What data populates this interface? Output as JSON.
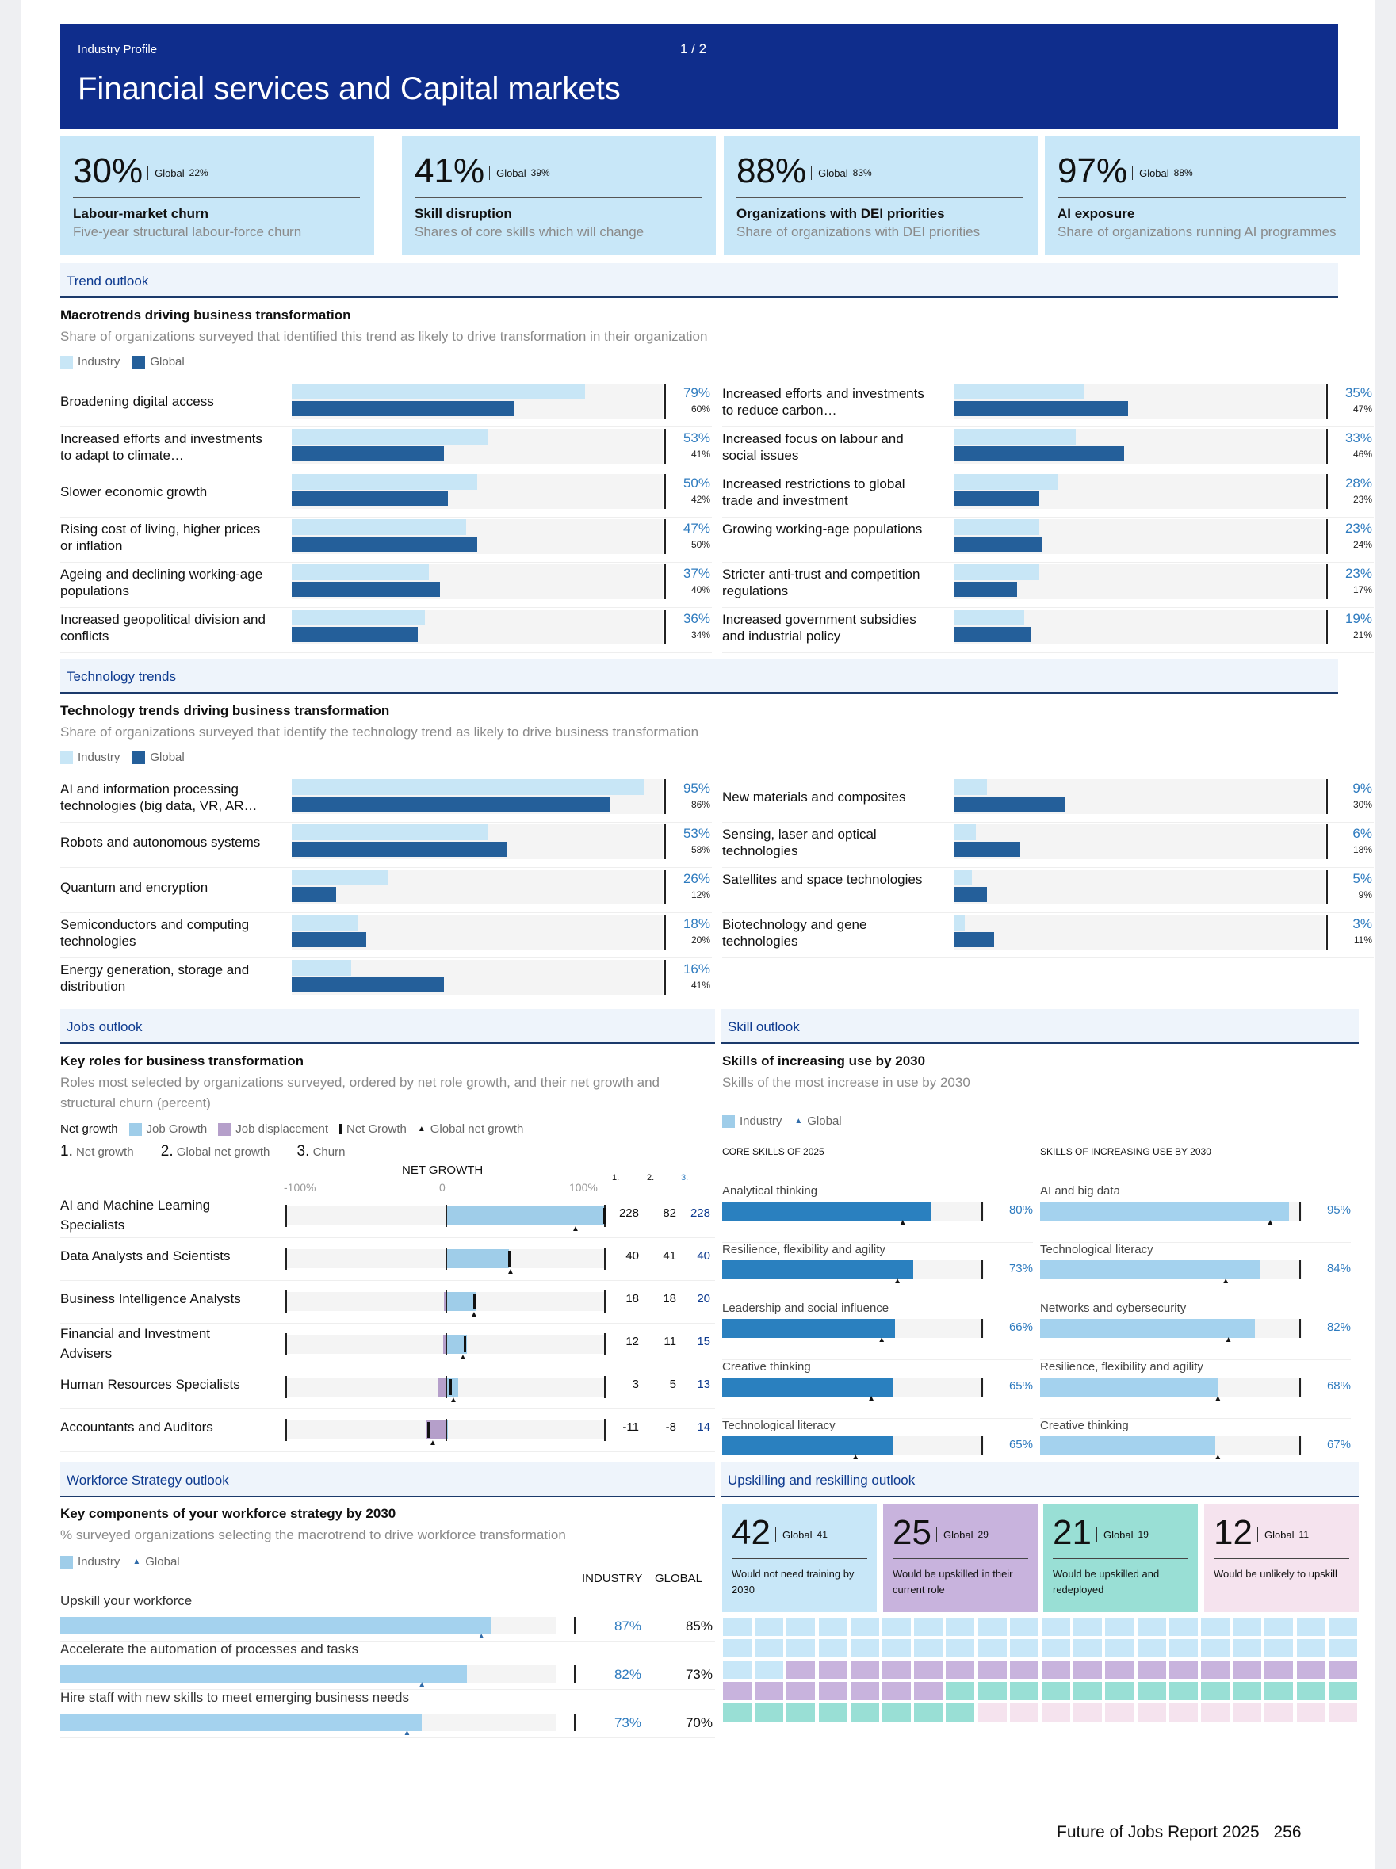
{
  "header": {
    "category": "Industry Profile",
    "page": "1  /  2",
    "title": "Financial services and Capital markets"
  },
  "kpis": [
    {
      "value": "30%",
      "global_label": "Global",
      "global": "22%",
      "title": "Labour-market churn",
      "sub": "Five-year structural labour-force churn"
    },
    {
      "value": "41%",
      "global_label": "Global",
      "global": "39%",
      "title": "Skill disruption",
      "sub": "Shares of core skills which will change"
    },
    {
      "value": "88%",
      "global_label": "Global",
      "global": "83%",
      "title": "Organizations with DEI priorities",
      "sub": "Share of organizations with DEI priorities"
    },
    {
      "value": "97%",
      "global_label": "Global",
      "global": "88%",
      "title": "AI exposure",
      "sub": "Share of organizations running AI programmes"
    }
  ],
  "legend": {
    "industry": "Industry",
    "global": "Global"
  },
  "trend": {
    "section": "Trend outlook",
    "title": "Macrotrends driving business transformation",
    "sub": "Share of organizations surveyed that identified this trend as likely to drive transformation in their organization",
    "left": [
      {
        "label": "Broadening digital access",
        "ind": "79%",
        "glob": "60%",
        "i": 79,
        "g": 60
      },
      {
        "label": "Increased efforts and investments to adapt to climate…",
        "ind": "53%",
        "glob": "41%",
        "i": 53,
        "g": 41
      },
      {
        "label": "Slower economic growth",
        "ind": "50%",
        "glob": "42%",
        "i": 50,
        "g": 42
      },
      {
        "label": "Rising cost of living, higher prices or inflation",
        "ind": "47%",
        "glob": "50%",
        "i": 47,
        "g": 50
      },
      {
        "label": "Ageing and declining working-age populations",
        "ind": "37%",
        "glob": "40%",
        "i": 37,
        "g": 40
      },
      {
        "label": "Increased geopolitical division and conflicts",
        "ind": "36%",
        "glob": "34%",
        "i": 36,
        "g": 34
      }
    ],
    "right": [
      {
        "label": "Increased efforts and investments to reduce carbon…",
        "ind": "35%",
        "glob": "47%",
        "i": 35,
        "g": 47
      },
      {
        "label": "Increased focus on labour and social issues",
        "ind": "33%",
        "glob": "46%",
        "i": 33,
        "g": 46
      },
      {
        "label": "Increased restrictions to global trade and investment",
        "ind": "28%",
        "glob": "23%",
        "i": 28,
        "g": 23
      },
      {
        "label": "Growing working-age populations",
        "ind": "23%",
        "glob": "24%",
        "i": 23,
        "g": 24
      },
      {
        "label": "Stricter anti-trust and competition regulations",
        "ind": "23%",
        "glob": "17%",
        "i": 23,
        "g": 17
      },
      {
        "label": "Increased government subsidies and industrial policy",
        "ind": "19%",
        "glob": "21%",
        "i": 19,
        "g": 21
      }
    ]
  },
  "tech": {
    "section": "Technology trends",
    "title": "Technology trends driving business transformation",
    "sub": "Share of organizations surveyed that identify the technology trend as likely to drive business transformation",
    "left": [
      {
        "label": "AI and information processing technologies (big data, VR, AR…",
        "ind": "95%",
        "glob": "86%",
        "i": 95,
        "g": 86
      },
      {
        "label": "Robots and autonomous systems",
        "ind": "53%",
        "glob": "58%",
        "i": 53,
        "g": 58
      },
      {
        "label": "Quantum and encryption",
        "ind": "26%",
        "glob": "12%",
        "i": 26,
        "g": 12
      },
      {
        "label": "Semiconductors and computing technologies",
        "ind": "18%",
        "glob": "20%",
        "i": 18,
        "g": 20
      },
      {
        "label": "Energy generation, storage and distribution",
        "ind": "16%",
        "glob": "41%",
        "i": 16,
        "g": 41
      }
    ],
    "right": [
      {
        "label": "New materials and composites",
        "ind": "9%",
        "glob": "30%",
        "i": 9,
        "g": 30
      },
      {
        "label": "Sensing, laser and optical technologies",
        "ind": "6%",
        "glob": "18%",
        "i": 6,
        "g": 18
      },
      {
        "label": "Satellites and space technologies",
        "ind": "5%",
        "glob": "9%",
        "i": 5,
        "g": 9
      },
      {
        "label": "Biotechnology and gene technologies",
        "ind": "3%",
        "glob": "11%",
        "i": 3,
        "g": 11
      }
    ]
  },
  "jobs": {
    "section": "Jobs outlook",
    "title": "Key roles for business transformation",
    "sub": "Roles most selected by organizations surveyed, ordered by net role growth, and their net growth and structural churn (percent)",
    "legend": {
      "net": "Net growth",
      "growth": "Job Growth",
      "displacement": "Job displacement",
      "netg": "Net Growth",
      "global": "Global net growth"
    },
    "keys": {
      "k1": "1.",
      "k1l": "Net growth",
      "k2": "2.",
      "k2l": "Global net growth",
      "k3": "3.",
      "k3l": "Churn"
    },
    "axis": {
      "title": "NET GROWTH",
      "min": "-100%",
      "zero": "0",
      "max": "100%",
      "c1": "1.",
      "c2": "2.",
      "c3": "3."
    },
    "rows": [
      {
        "label": "AI and Machine Learning Specialists",
        "net": "228",
        "glob": "82",
        "churn": "228",
        "n": 228,
        "g": 82,
        "gr": 100,
        "dp": 0
      },
      {
        "label": "Data Analysts and Scientists",
        "net": "40",
        "glob": "41",
        "churn": "40",
        "n": 40,
        "g": 41,
        "gr": 40,
        "dp": 0
      },
      {
        "label": "Business Intelligence Analysts",
        "net": "18",
        "glob": "18",
        "churn": "20",
        "n": 18,
        "g": 18,
        "gr": 19,
        "dp": 1
      },
      {
        "label": "Financial and Investment Advisers",
        "net": "12",
        "glob": "11",
        "churn": "15",
        "n": 12,
        "g": 11,
        "gr": 13.5,
        "dp": 1.5
      },
      {
        "label": "Human Resources Specialists",
        "net": "3",
        "glob": "5",
        "churn": "13",
        "n": 3,
        "g": 5,
        "gr": 8,
        "dp": 5
      },
      {
        "label": "Accountants and Auditors",
        "net": "-11",
        "glob": "-8",
        "churn": "14",
        "n": -11,
        "g": -8,
        "gr": 1.5,
        "dp": 12.5
      }
    ]
  },
  "skills": {
    "section": "Skill outlook",
    "title": "Skills of increasing use by 2030",
    "sub": "Skills of the most increase in use by 2030",
    "col1": "CORE SKILLS OF 2025",
    "col2": "SKILLS OF INCREASING USE BY 2030",
    "left": [
      {
        "label": "Analytical thinking",
        "val": "80%",
        "v": 80,
        "g": 69
      },
      {
        "label": "Resilience, flexibility and agility",
        "val": "73%",
        "v": 73,
        "g": 67
      },
      {
        "label": "Leadership and social influence",
        "val": "66%",
        "v": 66,
        "g": 61
      },
      {
        "label": "Creative thinking",
        "val": "65%",
        "v": 65,
        "g": 57
      },
      {
        "label": "Technological literacy",
        "val": "65%",
        "v": 65,
        "g": 51
      }
    ],
    "right": [
      {
        "label": "AI and big data",
        "val": "95%",
        "v": 95,
        "g": 88
      },
      {
        "label": "Technological literacy",
        "val": "84%",
        "v": 84,
        "g": 71
      },
      {
        "label": "Networks and cybersecurity",
        "val": "82%",
        "v": 82,
        "g": 72
      },
      {
        "label": "Resilience, flexibility and agility",
        "val": "68%",
        "v": 68,
        "g": 68
      },
      {
        "label": "Creative thinking",
        "val": "67%",
        "v": 67,
        "g": 68
      }
    ]
  },
  "workforce": {
    "section": "Workforce Strategy outlook",
    "title": "Key components of your workforce strategy by 2030",
    "sub": "% surveyed organizations selecting the macrotrend to drive workforce transformation",
    "col_ind": "INDUSTRY",
    "col_glob": "GLOBAL",
    "rows": [
      {
        "label": "Upskill your workforce",
        "ind": "87%",
        "glob": "85%",
        "i": 87,
        "g": 85
      },
      {
        "label": "Accelerate the automation of processes and tasks",
        "ind": "82%",
        "glob": "73%",
        "i": 82,
        "g": 73
      },
      {
        "label": "Hire staff with new skills to meet emerging business needs",
        "ind": "73%",
        "glob": "70%",
        "i": 73,
        "g": 70
      }
    ]
  },
  "upskill": {
    "section": "Upskilling and reskilling outlook",
    "cards": [
      {
        "value": "42",
        "global_label": "Global",
        "global": "41",
        "text": "Would not need training by 2030",
        "color": "#c8e7f8"
      },
      {
        "value": "25",
        "global_label": "Global",
        "global": "29",
        "text": "Would be upskilled in their current role",
        "color": "#c8b3dd"
      },
      {
        "value": "21",
        "global_label": "Global",
        "global": "19",
        "text": "Would be upskilled and redeployed",
        "color": "#99dfd5"
      },
      {
        "value": "12",
        "global_label": "Global",
        "global": "11",
        "text": "Would be unlikely to upskill",
        "color": "#f5e3ee"
      }
    ],
    "waffle_counts": [
      42,
      25,
      21,
      12
    ]
  },
  "footer": {
    "report": "Future of Jobs Report 2025",
    "page": "256"
  }
}
